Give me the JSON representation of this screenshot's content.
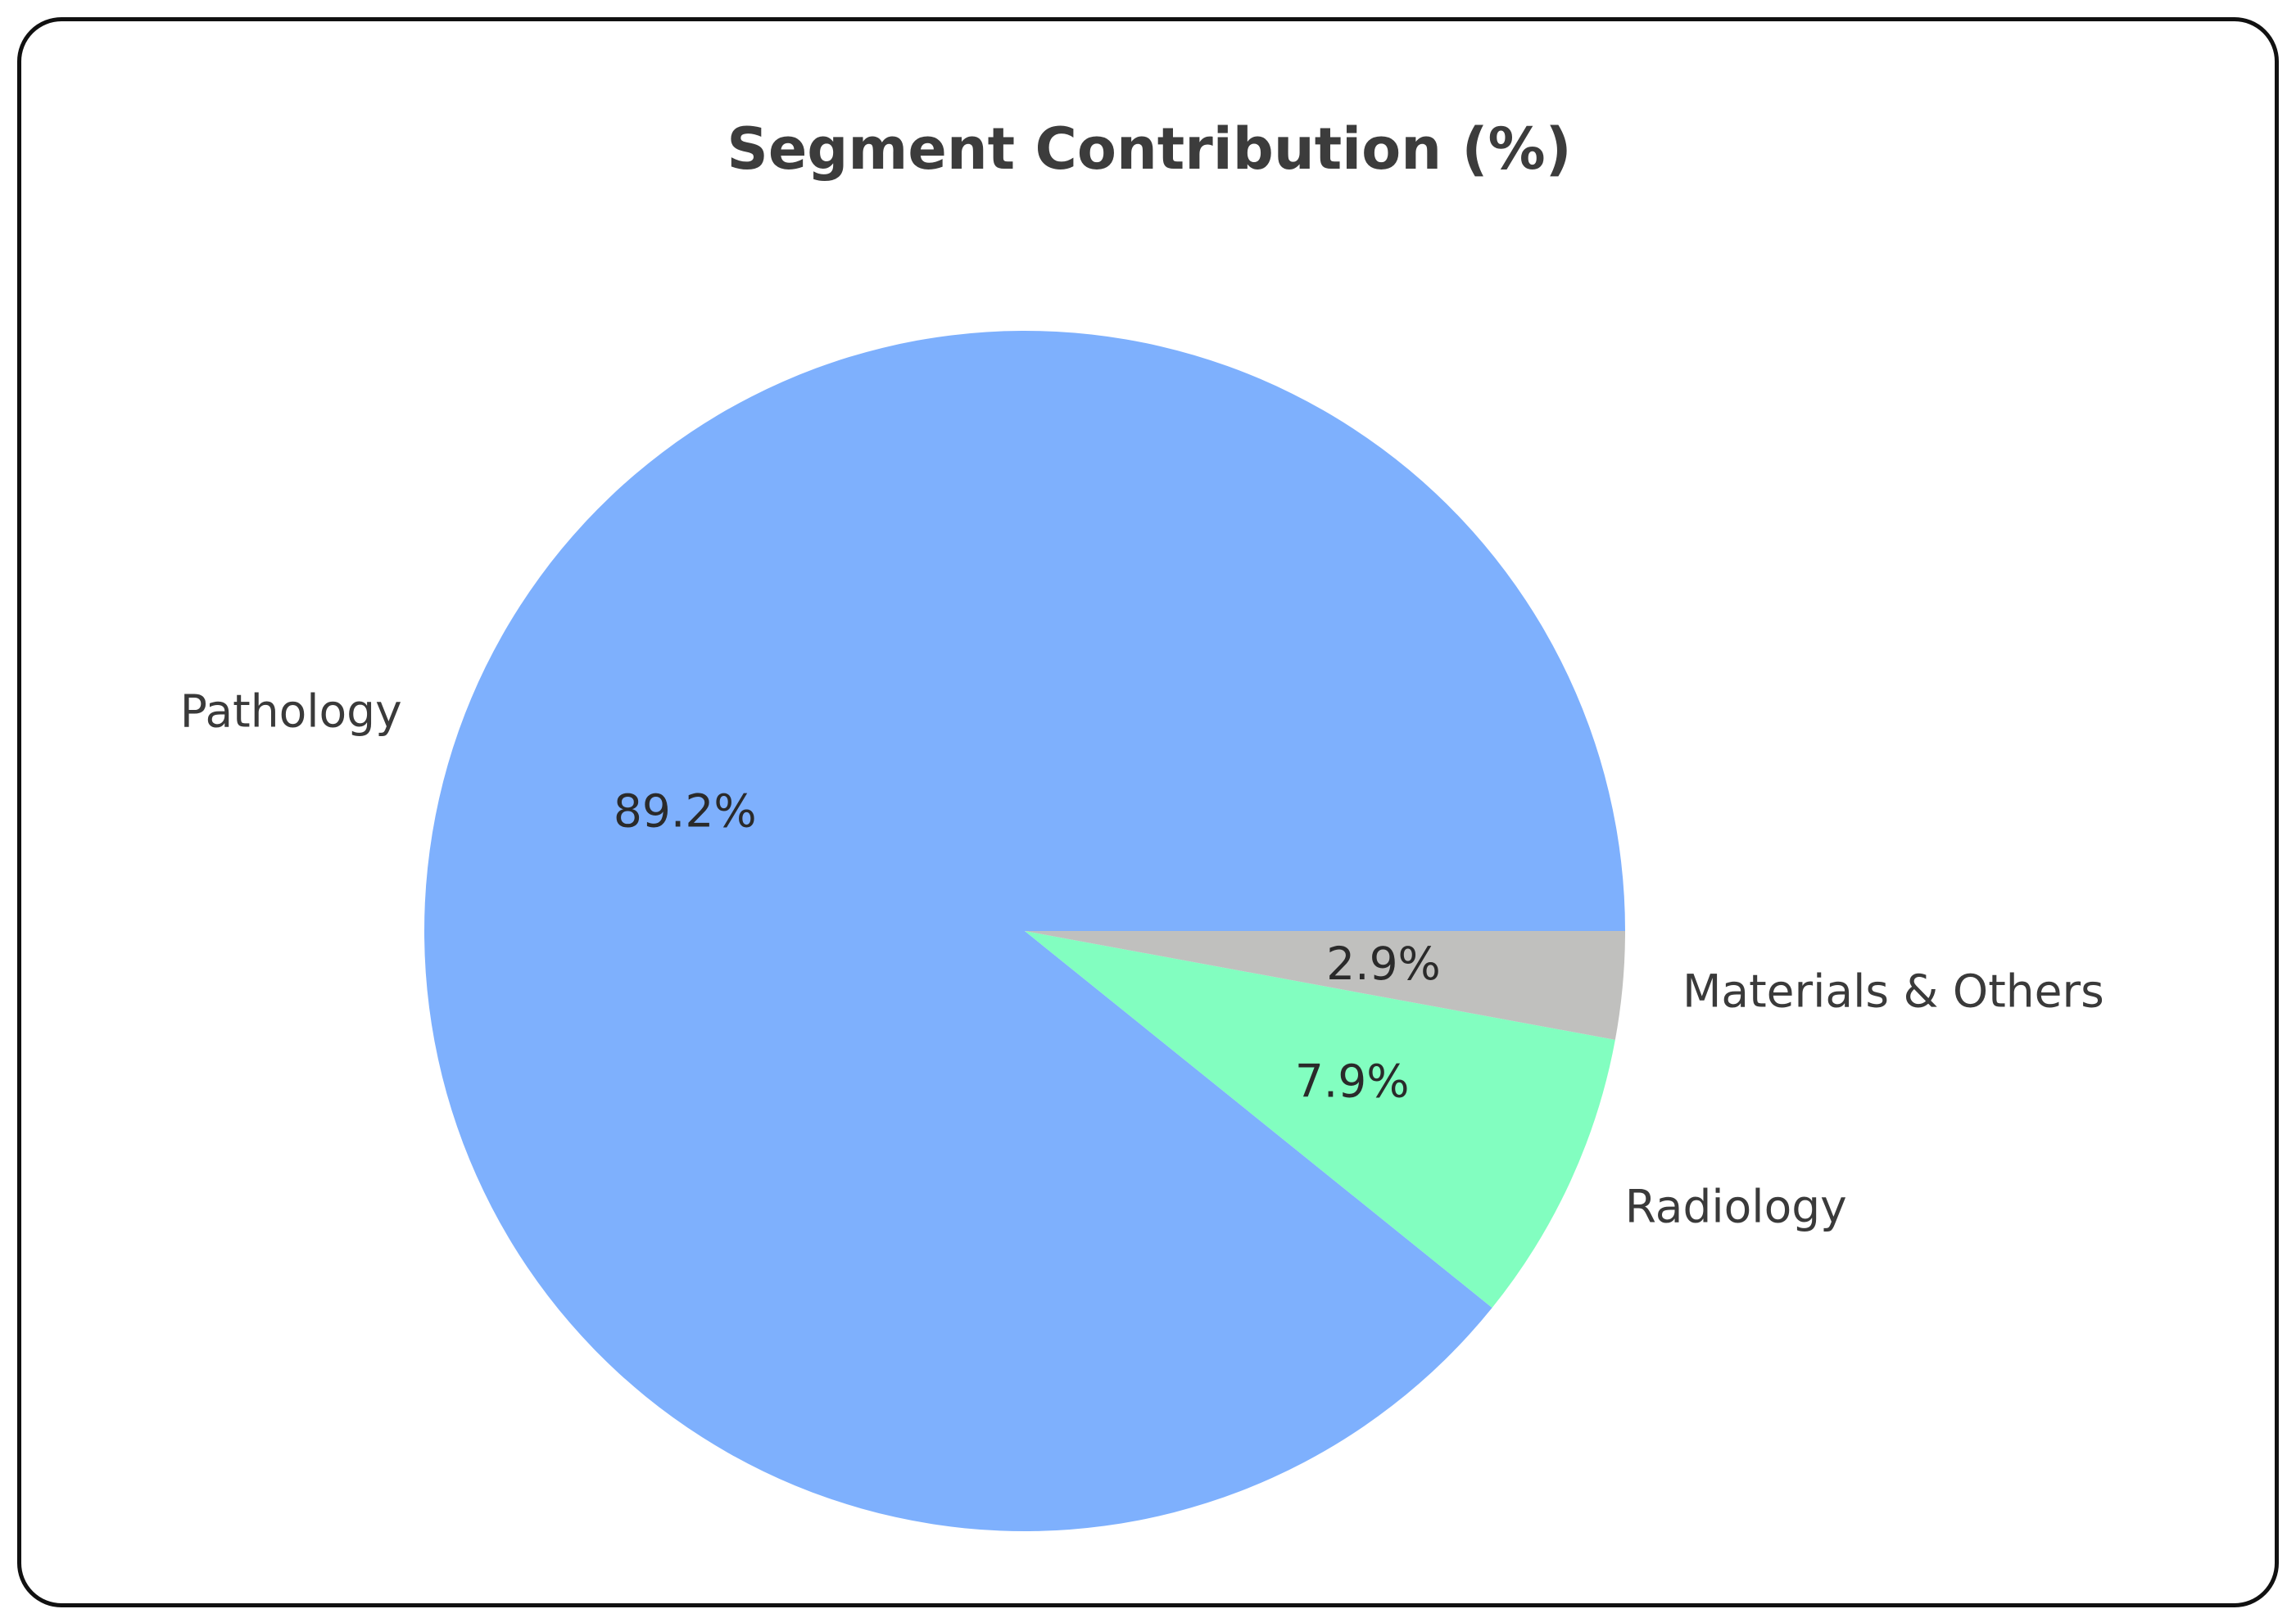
{
  "chart_data": {
    "type": "pie",
    "title": "Segment Contribution (%)",
    "labels": [
      "Pathology",
      "Radiology",
      "Materials & Others"
    ],
    "values": [
      89.2,
      7.9,
      2.9
    ],
    "value_labels": [
      "89.2%",
      "7.9%",
      "2.9%"
    ],
    "colors": [
      "#7eb0fd",
      "#82fec0",
      "#c0c0be"
    ],
    "start_angle": 0,
    "direction": "counterclockwise",
    "legend": "none"
  }
}
